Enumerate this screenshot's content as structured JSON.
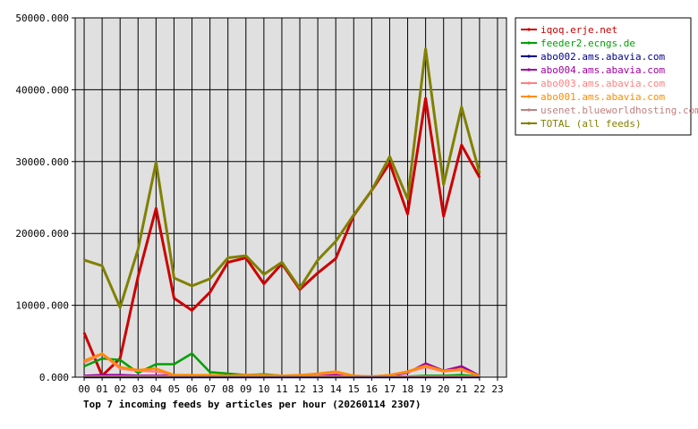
{
  "chart_data": {
    "type": "line",
    "title": "Top 7 incoming feeds by articles per hour (20260114 2307)",
    "ylim": [
      0,
      50000
    ],
    "yticks": [
      "0.000",
      "10000.000",
      "20000.000",
      "30000.000",
      "40000.000",
      "50000.000"
    ],
    "categories": [
      "00",
      "01",
      "02",
      "03",
      "04",
      "05",
      "06",
      "07",
      "08",
      "09",
      "10",
      "11",
      "12",
      "13",
      "14",
      "15",
      "16",
      "17",
      "18",
      "19",
      "20",
      "21",
      "22",
      "23"
    ],
    "grid": true,
    "legend_position": "right",
    "plot_background": "#e0e0e0",
    "series": [
      {
        "name": "iqoq.erje.net",
        "color": "#cc0000",
        "values": [
          6200,
          200,
          2600,
          14000,
          23500,
          11000,
          9300,
          11800,
          16000,
          16600,
          13000,
          15800,
          12200,
          14500,
          16500,
          22500,
          26000,
          29800,
          22700,
          38800,
          22400,
          32300,
          27800,
          null
        ]
      },
      {
        "name": "feeder2.ecngs.de",
        "color": "#00a000",
        "values": [
          1500,
          2600,
          2400,
          600,
          1800,
          1800,
          3300,
          700,
          500,
          300,
          400,
          200,
          100,
          200,
          300,
          100,
          100,
          100,
          100,
          200,
          200,
          300,
          100,
          null
        ]
      },
      {
        "name": "abo002.ams.abavia.com",
        "color": "#000090",
        "values": [
          0,
          0,
          0,
          0,
          0,
          0,
          0,
          0,
          0,
          0,
          0,
          0,
          0,
          0,
          0,
          0,
          0,
          0,
          0,
          0,
          0,
          0,
          0,
          null
        ]
      },
      {
        "name": "abo004.ams.abavia.com",
        "color": "#a000a0",
        "values": [
          200,
          300,
          300,
          200,
          200,
          200,
          200,
          200,
          200,
          200,
          200,
          200,
          200,
          300,
          400,
          100,
          100,
          200,
          600,
          1900,
          900,
          1500,
          200,
          null
        ]
      },
      {
        "name": "abo003.ams.abavia.com",
        "color": "#ff8080",
        "values": [
          2000,
          3200,
          1200,
          900,
          800,
          300,
          300,
          200,
          200,
          300,
          300,
          200,
          300,
          400,
          600,
          200,
          100,
          300,
          700,
          1400,
          800,
          1000,
          200,
          null
        ]
      },
      {
        "name": "abo001.ams.abavia.com",
        "color": "#ff8c00",
        "values": [
          2300,
          3300,
          1400,
          1000,
          1200,
          300,
          300,
          300,
          200,
          300,
          300,
          200,
          300,
          500,
          800,
          200,
          100,
          300,
          800,
          1600,
          900,
          1100,
          200,
          null
        ]
      },
      {
        "name": "usenet.blueworldhosting.com",
        "color": "#c08080",
        "values": [
          100,
          100,
          100,
          100,
          100,
          100,
          100,
          100,
          100,
          100,
          100,
          100,
          100,
          100,
          100,
          100,
          100,
          100,
          100,
          100,
          100,
          100,
          100,
          null
        ]
      },
      {
        "name": "TOTAL (all feeds)",
        "color": "#808000",
        "values": [
          16300,
          15500,
          9700,
          17800,
          29900,
          13800,
          12700,
          13700,
          16600,
          16900,
          14300,
          16000,
          12400,
          16300,
          18900,
          22600,
          26000,
          30700,
          24800,
          45700,
          26800,
          37600,
          28400,
          null
        ]
      }
    ]
  }
}
